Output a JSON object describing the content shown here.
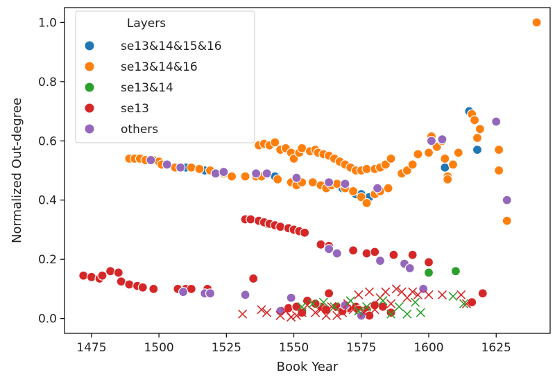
{
  "chart_data": {
    "type": "scatter",
    "xlabel": "Book Year",
    "ylabel": "Normalized Out-degree",
    "xlim": [
      1465,
      1645
    ],
    "ylim": [
      -0.05,
      1.05
    ],
    "xticks": [
      1475,
      1500,
      1525,
      1550,
      1575,
      1600,
      1625
    ],
    "xtick_labels": [
      "1475",
      "1500",
      "1525",
      "1550",
      "1575",
      "1600",
      "1625"
    ],
    "yticks": [
      0.0,
      0.2,
      0.4,
      0.6,
      0.8,
      1.0
    ],
    "ytick_labels": [
      "0.0",
      "0.2",
      "0.4",
      "0.6",
      "0.8",
      "1.0"
    ],
    "grid": false,
    "legend": {
      "title": "Layers",
      "placement": "upper-left",
      "entries": [
        "se13&14&15&16",
        "se13&14&16",
        "se13&14",
        "se13",
        "others"
      ]
    },
    "series": [
      {
        "name": "se13&14&15&16",
        "marker": "circle",
        "color": "#1f77b4",
        "points": [
          [
            1510,
            0.51
          ],
          [
            1517,
            0.5
          ],
          [
            1527,
            0.48
          ],
          [
            1543,
            0.48
          ],
          [
            1568,
            0.44
          ],
          [
            1573,
            0.42
          ],
          [
            1575,
            0.42
          ],
          [
            1578,
            0.41
          ],
          [
            1618,
            0.57
          ],
          [
            1615,
            0.7
          ],
          [
            1606,
            0.51
          ]
        ]
      },
      {
        "name": "se13&14&16",
        "marker": "circle",
        "color": "#ff7f0e",
        "points": [
          [
            1640,
            1.0
          ],
          [
            1489,
            0.54
          ],
          [
            1491,
            0.54
          ],
          [
            1493,
            0.54
          ],
          [
            1495,
            0.535
          ],
          [
            1498,
            0.535
          ],
          [
            1500,
            0.53
          ],
          [
            1501,
            0.52
          ],
          [
            1503,
            0.52
          ],
          [
            1506,
            0.51
          ],
          [
            1508,
            0.51
          ],
          [
            1512,
            0.51
          ],
          [
            1515,
            0.505
          ],
          [
            1519,
            0.5
          ],
          [
            1521,
            0.49
          ],
          [
            1524,
            0.49
          ],
          [
            1527,
            0.48
          ],
          [
            1532,
            0.48
          ],
          [
            1536,
            0.48
          ],
          [
            1538,
            0.48
          ],
          [
            1544,
            0.47
          ],
          [
            1537,
            0.585
          ],
          [
            1539,
            0.59
          ],
          [
            1541,
            0.585
          ],
          [
            1543,
            0.595
          ],
          [
            1545,
            0.57
          ],
          [
            1547,
            0.575
          ],
          [
            1549,
            0.56
          ],
          [
            1550,
            0.54
          ],
          [
            1552,
            0.56
          ],
          [
            1553,
            0.575
          ],
          [
            1556,
            0.565
          ],
          [
            1558,
            0.57
          ],
          [
            1559,
            0.56
          ],
          [
            1561,
            0.555
          ],
          [
            1563,
            0.55
          ],
          [
            1565,
            0.54
          ],
          [
            1567,
            0.53
          ],
          [
            1569,
            0.52
          ],
          [
            1571,
            0.51
          ],
          [
            1573,
            0.5
          ],
          [
            1575,
            0.5
          ],
          [
            1577,
            0.505
          ],
          [
            1580,
            0.505
          ],
          [
            1582,
            0.51
          ],
          [
            1584,
            0.52
          ],
          [
            1586,
            0.54
          ],
          [
            1549,
            0.46
          ],
          [
            1551,
            0.45
          ],
          [
            1553,
            0.46
          ],
          [
            1557,
            0.46
          ],
          [
            1560,
            0.45
          ],
          [
            1562,
            0.44
          ],
          [
            1564,
            0.45
          ],
          [
            1566,
            0.455
          ],
          [
            1569,
            0.44
          ],
          [
            1572,
            0.43
          ],
          [
            1575,
            0.41
          ],
          [
            1577,
            0.39
          ],
          [
            1580,
            0.42
          ],
          [
            1582,
            0.43
          ],
          [
            1585,
            0.44
          ],
          [
            1590,
            0.49
          ],
          [
            1592,
            0.5
          ],
          [
            1594,
            0.52
          ],
          [
            1596,
            0.555
          ],
          [
            1600,
            0.56
          ],
          [
            1601,
            0.615
          ],
          [
            1603,
            0.58
          ],
          [
            1605,
            0.6
          ],
          [
            1606,
            0.54
          ],
          [
            1607,
            0.48
          ],
          [
            1607,
            0.47
          ],
          [
            1609,
            0.52
          ],
          [
            1611,
            0.56
          ],
          [
            1616,
            0.69
          ],
          [
            1617,
            0.67
          ],
          [
            1619,
            0.64
          ],
          [
            1618,
            0.61
          ],
          [
            1626,
            0.57
          ],
          [
            1626,
            0.5
          ],
          [
            1629,
            0.33
          ]
        ]
      },
      {
        "name": "se13&14",
        "marker": "circle",
        "color": "#2ca02c",
        "points": [
          [
            1600,
            0.155
          ],
          [
            1610,
            0.16
          ],
          [
            1540,
            0.32
          ]
        ]
      },
      {
        "name": "se13",
        "marker": "circle",
        "color": "#d62728",
        "points": [
          [
            1472,
            0.145
          ],
          [
            1475,
            0.14
          ],
          [
            1478,
            0.135
          ],
          [
            1479,
            0.145
          ],
          [
            1482,
            0.16
          ],
          [
            1485,
            0.155
          ],
          [
            1486,
            0.125
          ],
          [
            1489,
            0.115
          ],
          [
            1492,
            0.11
          ],
          [
            1494,
            0.105
          ],
          [
            1498,
            0.1
          ],
          [
            1507,
            0.1
          ],
          [
            1510,
            0.1
          ],
          [
            1512,
            0.1
          ],
          [
            1518,
            0.1
          ],
          [
            1532,
            0.335
          ],
          [
            1534,
            0.335
          ],
          [
            1537,
            0.33
          ],
          [
            1539,
            0.325
          ],
          [
            1541,
            0.32
          ],
          [
            1543,
            0.315
          ],
          [
            1545,
            0.31
          ],
          [
            1548,
            0.305
          ],
          [
            1550,
            0.3
          ],
          [
            1552,
            0.295
          ],
          [
            1554,
            0.29
          ],
          [
            1560,
            0.25
          ],
          [
            1563,
            0.245
          ],
          [
            1572,
            0.23
          ],
          [
            1577,
            0.22
          ],
          [
            1580,
            0.225
          ],
          [
            1587,
            0.215
          ],
          [
            1594,
            0.215
          ],
          [
            1600,
            0.19
          ],
          [
            1535,
            0.135
          ],
          [
            1555,
            0.06
          ],
          [
            1560,
            0.04
          ],
          [
            1563,
            0.085
          ],
          [
            1566,
            0.04
          ],
          [
            1570,
            0.035
          ],
          [
            1573,
            0.04
          ],
          [
            1577,
            0.03
          ],
          [
            1580,
            0.045
          ],
          [
            1583,
            0.04
          ],
          [
            1586,
            0.02
          ],
          [
            1548,
            0.035
          ],
          [
            1551,
            0.04
          ],
          [
            1553,
            0.02
          ],
          [
            1558,
            0.05
          ],
          [
            1562,
            0.03
          ],
          [
            1568,
            0.025
          ],
          [
            1574,
            0.03
          ],
          [
            1578,
            0.01
          ],
          [
            1616,
            0.055
          ],
          [
            1620,
            0.085
          ]
        ]
      },
      {
        "name": "others",
        "marker": "circle",
        "color": "#9467bd",
        "points": [
          [
            1497,
            0.535
          ],
          [
            1503,
            0.52
          ],
          [
            1508,
            0.51
          ],
          [
            1521,
            0.49
          ],
          [
            1524,
            0.495
          ],
          [
            1536,
            0.49
          ],
          [
            1540,
            0.49
          ],
          [
            1551,
            0.475
          ],
          [
            1563,
            0.46
          ],
          [
            1569,
            0.455
          ],
          [
            1581,
            0.44
          ],
          [
            1601,
            0.6
          ],
          [
            1605,
            0.605
          ],
          [
            1625,
            0.665
          ],
          [
            1629,
            0.4
          ],
          [
            1509,
            0.09
          ],
          [
            1517,
            0.085
          ],
          [
            1519,
            0.085
          ],
          [
            1532,
            0.08
          ],
          [
            1545,
            0.025
          ],
          [
            1549,
            0.07
          ],
          [
            1563,
            0.235
          ],
          [
            1566,
            0.22
          ],
          [
            1582,
            0.195
          ],
          [
            1591,
            0.185
          ],
          [
            1593,
            0.17
          ],
          [
            1598,
            0.1
          ],
          [
            1569,
            0.045
          ],
          [
            1575,
            0.01
          ]
        ]
      },
      {
        "name": "",
        "marker": "x",
        "color": "#d62728",
        "points": [
          [
            1531,
            0.015
          ],
          [
            1538,
            0.03
          ],
          [
            1540,
            0.02
          ],
          [
            1545,
            0.01
          ],
          [
            1547,
            0.025
          ],
          [
            1549,
            0.005
          ],
          [
            1551,
            0.01
          ],
          [
            1553,
            0.02
          ],
          [
            1555,
            0.045
          ],
          [
            1558,
            0.02
          ],
          [
            1560,
            0.03
          ],
          [
            1562,
            0.01
          ],
          [
            1564,
            0.04
          ],
          [
            1566,
            0.01
          ],
          [
            1568,
            0.02
          ],
          [
            1570,
            0.05
          ],
          [
            1572,
            0.03
          ],
          [
            1574,
            0.08
          ],
          [
            1576,
            0.02
          ],
          [
            1578,
            0.09
          ],
          [
            1580,
            0.03
          ],
          [
            1582,
            0.07
          ],
          [
            1584,
            0.09
          ],
          [
            1586,
            0.05
          ],
          [
            1588,
            0.1
          ],
          [
            1590,
            0.09
          ],
          [
            1592,
            0.07
          ],
          [
            1594,
            0.09
          ],
          [
            1596,
            0.08
          ],
          [
            1600,
            0.08
          ],
          [
            1605,
            0.08
          ],
          [
            1612,
            0.08
          ],
          [
            1614,
            0.05
          ]
        ]
      },
      {
        "name": "",
        "marker": "x",
        "color": "#2ca02c",
        "points": [
          [
            1553,
            0.04
          ],
          [
            1557,
            0.05
          ],
          [
            1561,
            0.055
          ],
          [
            1565,
            0.04
          ],
          [
            1571,
            0.06
          ],
          [
            1574,
            0.025
          ],
          [
            1577,
            0.04
          ],
          [
            1583,
            0.06
          ],
          [
            1586,
            0.015
          ],
          [
            1589,
            0.04
          ],
          [
            1592,
            0.015
          ],
          [
            1595,
            0.055
          ],
          [
            1597,
            0.02
          ],
          [
            1609,
            0.075
          ],
          [
            1613,
            0.05
          ]
        ]
      }
    ]
  }
}
